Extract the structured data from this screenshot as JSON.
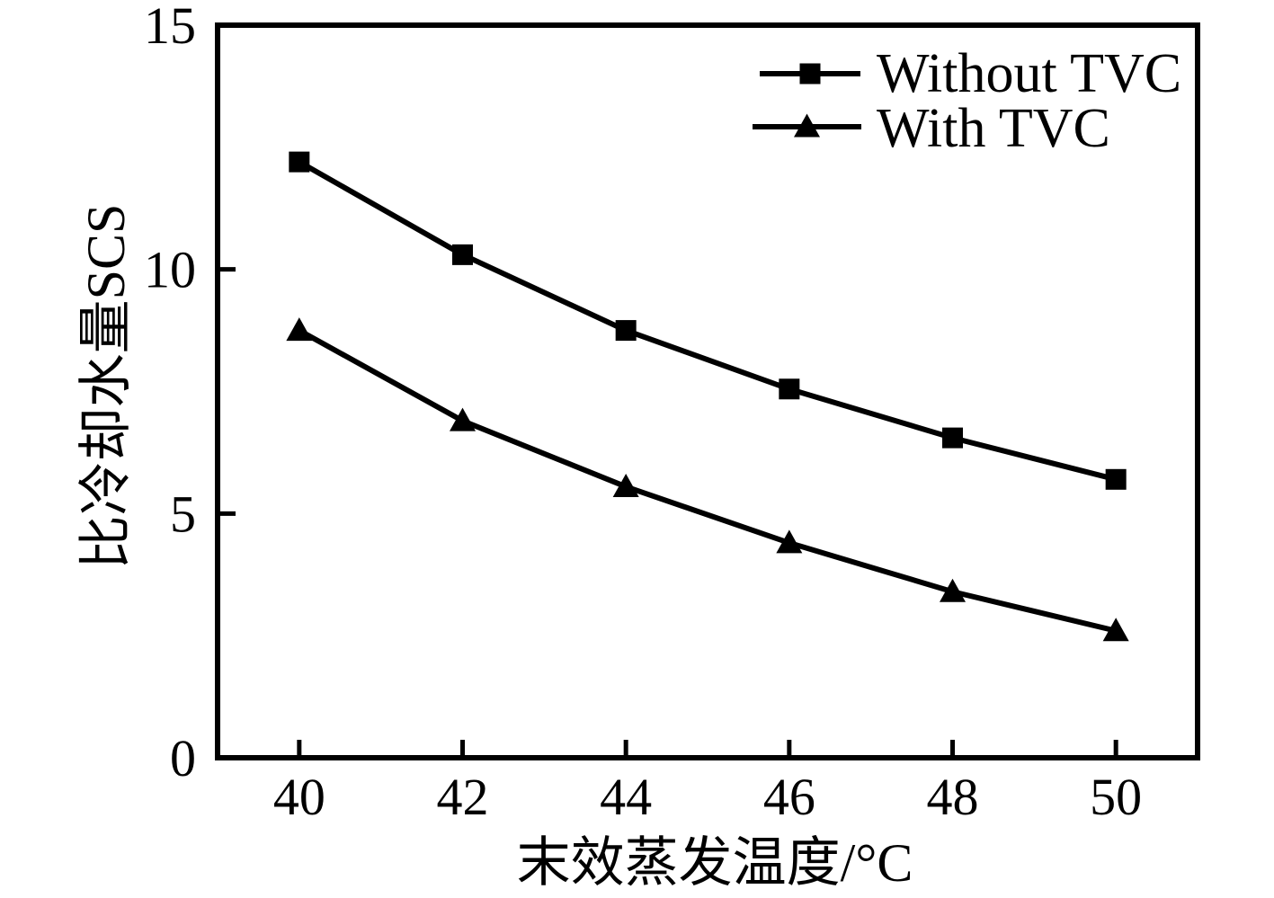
{
  "figure": {
    "background": "#ffffff",
    "ink_color": "#000000"
  },
  "chart_data": {
    "type": "line",
    "title": "",
    "xlabel": "末效蒸发温度/°C",
    "ylabel": "比冷却水量SCS",
    "x": [
      40,
      42,
      44,
      46,
      48,
      50
    ],
    "series": [
      {
        "name": "Without TVC",
        "marker": "square",
        "color": "#000000",
        "values": [
          12.2,
          10.3,
          8.75,
          7.55,
          6.55,
          5.7
        ]
      },
      {
        "name": "With TVC",
        "marker": "triangle",
        "color": "#000000",
        "values": [
          8.75,
          6.9,
          5.55,
          4.4,
          3.4,
          2.6
        ]
      }
    ],
    "xlim": [
      39,
      51
    ],
    "ylim": [
      0,
      15
    ],
    "x_ticks": [
      40,
      42,
      44,
      46,
      48,
      50
    ],
    "y_ticks": [
      0,
      5,
      10,
      15
    ],
    "grid": false,
    "legend_position": "top-right",
    "legend_entries": [
      "Without TVC",
      "With TVC"
    ]
  }
}
